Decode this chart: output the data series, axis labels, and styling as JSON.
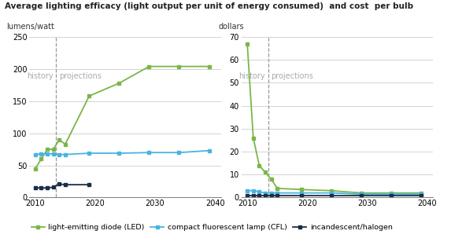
{
  "title": "Average lighting efficacy (light output per unit of energy consumed)  and cost  per bulb",
  "left_ylabel": "lumens/watt",
  "right_ylabel": "dollars",
  "history_label": "history",
  "projections_label": "projections",
  "vline_x": 2013.5,
  "colors": {
    "LED": "#7ab648",
    "CFL": "#4ab3e0",
    "incandescent": "#1a2e45"
  },
  "legend_labels": [
    "light-emitting diode (LED)",
    "compact fluorescent lamp (CFL)",
    "incandescent/halogen"
  ],
  "left_chart": {
    "xlim": [
      2009.0,
      2041.0
    ],
    "ylim": [
      0,
      250
    ],
    "yticks": [
      0,
      50,
      100,
      150,
      200,
      250
    ],
    "xticks": [
      2010,
      2020,
      2030,
      2040
    ],
    "LED_x": [
      2010,
      2011,
      2012,
      2013,
      2014,
      2015,
      2019,
      2024,
      2029,
      2034,
      2039
    ],
    "LED_y": [
      45,
      60,
      75,
      75,
      90,
      83,
      158,
      178,
      204,
      204,
      204
    ],
    "CFL_x": [
      2010,
      2011,
      2012,
      2013,
      2014,
      2015,
      2019,
      2024,
      2029,
      2034,
      2039
    ],
    "CFL_y": [
      67,
      68,
      68,
      68,
      67,
      67,
      69,
      69,
      70,
      70,
      73
    ],
    "INC_x": [
      2010,
      2011,
      2012,
      2013,
      2014,
      2015,
      2019
    ],
    "INC_y": [
      15,
      15,
      15,
      16,
      21,
      20,
      20
    ]
  },
  "right_chart": {
    "xlim": [
      2009.0,
      2041.0
    ],
    "ylim": [
      0,
      70
    ],
    "yticks": [
      0,
      10,
      20,
      30,
      40,
      50,
      60,
      70
    ],
    "xticks": [
      2010,
      2020,
      2030,
      2040
    ],
    "LED_x": [
      2010,
      2011,
      2012,
      2013,
      2014,
      2015,
      2019,
      2024,
      2029,
      2034,
      2039
    ],
    "LED_y": [
      67,
      26,
      14,
      11,
      8,
      4,
      3.5,
      3,
      2,
      2,
      2
    ],
    "CFL_x": [
      2010,
      2011,
      2012,
      2013,
      2014,
      2015,
      2019,
      2024,
      2029,
      2034,
      2039
    ],
    "CFL_y": [
      3,
      3,
      2.5,
      2,
      2,
      2,
      2,
      2,
      1.5,
      1.5,
      1.5
    ],
    "INC_x": [
      2010,
      2011,
      2012,
      2013,
      2014,
      2015,
      2019,
      2024,
      2029,
      2034,
      2039
    ],
    "INC_y": [
      1,
      1,
      1,
      1,
      1,
      1,
      1,
      1,
      1,
      1,
      1
    ]
  },
  "title_fontsize": 7.5,
  "tick_fontsize": 7.0,
  "label_fontsize": 7.0,
  "hist_proj_fontsize": 7.0,
  "legend_fontsize": 6.8
}
